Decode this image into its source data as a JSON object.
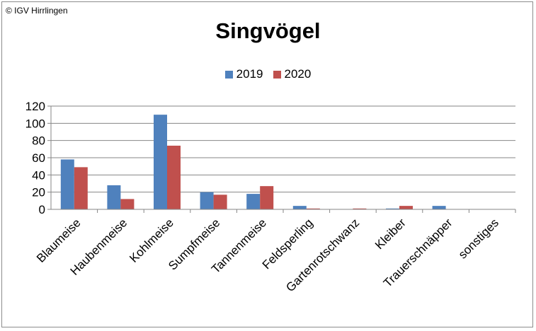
{
  "copyright": "© IGV Hirrlingen",
  "chart_data": {
    "type": "bar",
    "title": "Singvögel",
    "categories": [
      "Blaumeise",
      "Haubenmeise",
      "Kohlmeise",
      "Sumpfmeise",
      "Tannenmeise",
      "Feldsperling",
      "Gartenrotschwanz",
      "Kleiber",
      "Trauerschnäpper",
      "sonstiges"
    ],
    "series": [
      {
        "name": "2019",
        "color": "#4f81bd",
        "values": [
          58,
          28,
          110,
          20,
          18,
          4,
          0,
          1,
          4,
          0
        ]
      },
      {
        "name": "2020",
        "color": "#c0504d",
        "values": [
          49,
          12,
          74,
          17,
          27,
          1,
          1,
          4,
          0,
          0
        ]
      }
    ],
    "ylim": [
      0,
      120
    ],
    "yticks": [
      0,
      20,
      40,
      60,
      80,
      100,
      120
    ],
    "grid": true,
    "legend_position": "top"
  }
}
